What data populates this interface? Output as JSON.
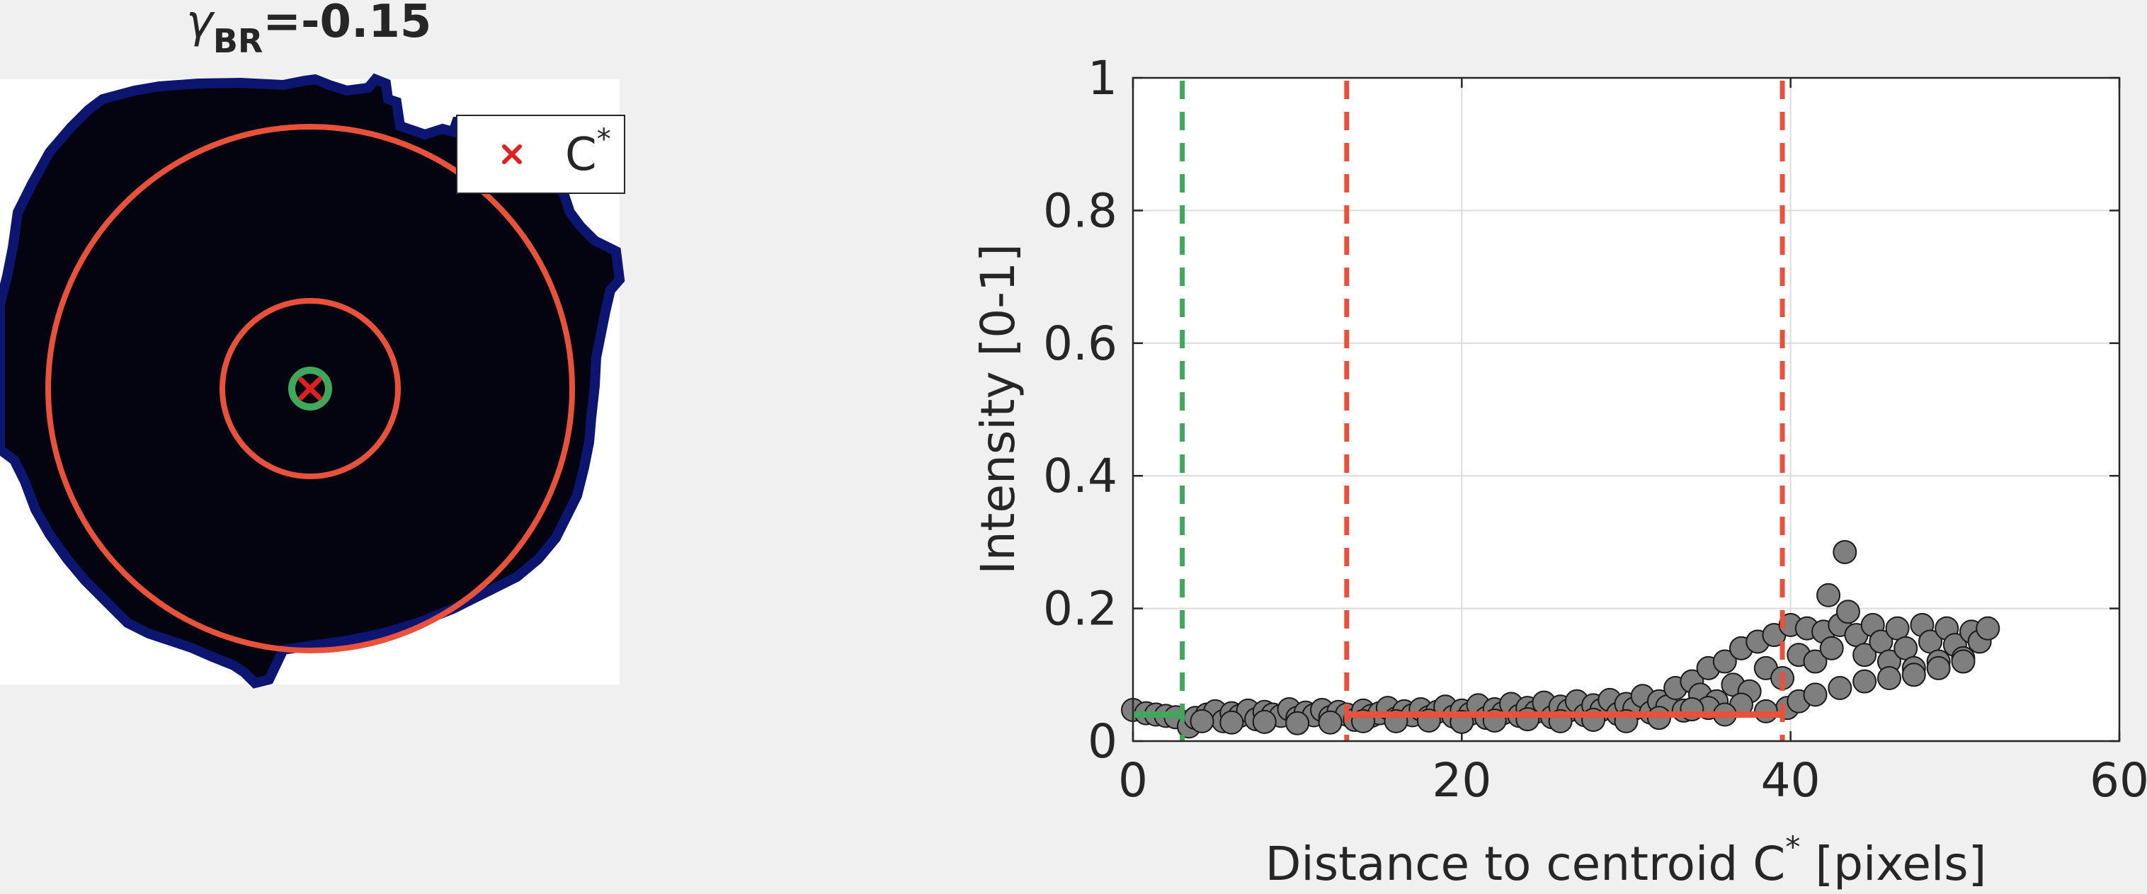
{
  "colors": {
    "figure_background": "#f0f0f0",
    "blob_fill": "#05061a",
    "blob_edge": "#0a1466",
    "inner_ring": "#e8513b",
    "outer_ring": "#e8513b",
    "center_ring": "#3fa85a",
    "marker": "#e02020",
    "scatter_fill": "#7f7f7f",
    "scatter_edge": "#1a1a1a",
    "green_line": "#3fa85a",
    "red_line": "#e8513b"
  },
  "left_panel": {
    "title_symbol": "γ",
    "title_subscript": "BR",
    "title_value": "=-0.15",
    "legend": {
      "marker_symbol": "×",
      "label": "C",
      "label_superscript": "*"
    },
    "image_description_icon": "segmented-cell-image"
  },
  "chart_data": {
    "type": "scatter",
    "title": "",
    "xlabel": "Distance to centroid C",
    "xlabel_superscript": "*",
    "xlabel_suffix": " [pixels]",
    "ylabel": "Intensity [0-1]",
    "xlim": [
      0,
      60
    ],
    "ylim": [
      0,
      1
    ],
    "x_ticks": [
      0,
      20,
      40,
      60
    ],
    "y_ticks": [
      0,
      0.2,
      0.4,
      0.6,
      0.8,
      1
    ],
    "x_tick_labels": [
      "0",
      "20",
      "40",
      "60"
    ],
    "y_tick_labels": [
      "0",
      "0.2",
      "0.4",
      "0.6",
      "0.8",
      "1"
    ],
    "grid": true,
    "vertical_lines": [
      {
        "x": 3.0,
        "color": "green",
        "style": "dashed"
      },
      {
        "x": 13.0,
        "color": "red",
        "style": "dashed"
      },
      {
        "x": 39.5,
        "color": "red",
        "style": "dashed"
      }
    ],
    "mean_segments": [
      {
        "x_start": 0,
        "x_end": 3.0,
        "y": 0.04,
        "color": "green"
      },
      {
        "x_start": 13.0,
        "x_end": 39.5,
        "y": 0.04,
        "color": "red"
      }
    ],
    "scatter_points": [
      [
        0.0,
        0.047
      ],
      [
        0.8,
        0.042
      ],
      [
        1.4,
        0.04
      ],
      [
        2.0,
        0.038
      ],
      [
        2.6,
        0.036
      ],
      [
        3.4,
        0.022
      ],
      [
        3.8,
        0.035
      ],
      [
        4.5,
        0.04
      ],
      [
        5.0,
        0.045
      ],
      [
        5.5,
        0.03
      ],
      [
        6.0,
        0.042
      ],
      [
        6.5,
        0.038
      ],
      [
        7.0,
        0.046
      ],
      [
        7.5,
        0.033
      ],
      [
        8.0,
        0.044
      ],
      [
        8.5,
        0.04
      ],
      [
        9.0,
        0.038
      ],
      [
        9.5,
        0.048
      ],
      [
        10.0,
        0.035
      ],
      [
        10.5,
        0.043
      ],
      [
        11.0,
        0.039
      ],
      [
        11.5,
        0.047
      ],
      [
        12.0,
        0.036
      ],
      [
        12.5,
        0.044
      ],
      [
        13.0,
        0.04
      ],
      [
        13.5,
        0.032
      ],
      [
        14.0,
        0.046
      ],
      [
        14.5,
        0.038
      ],
      [
        15.0,
        0.042
      ],
      [
        15.5,
        0.05
      ],
      [
        16.0,
        0.034
      ],
      [
        16.5,
        0.045
      ],
      [
        17.0,
        0.039
      ],
      [
        17.5,
        0.048
      ],
      [
        18.0,
        0.036
      ],
      [
        18.5,
        0.044
      ],
      [
        19.0,
        0.052
      ],
      [
        19.5,
        0.037
      ],
      [
        20.0,
        0.046
      ],
      [
        20.5,
        0.041
      ],
      [
        21.0,
        0.054
      ],
      [
        21.5,
        0.035
      ],
      [
        22.0,
        0.048
      ],
      [
        22.5,
        0.042
      ],
      [
        23.0,
        0.056
      ],
      [
        23.5,
        0.038
      ],
      [
        24.0,
        0.05
      ],
      [
        24.5,
        0.044
      ],
      [
        25.0,
        0.058
      ],
      [
        25.5,
        0.036
      ],
      [
        26.0,
        0.052
      ],
      [
        26.5,
        0.046
      ],
      [
        27.0,
        0.06
      ],
      [
        27.5,
        0.039
      ],
      [
        28.0,
        0.054
      ],
      [
        28.5,
        0.047
      ],
      [
        29.0,
        0.062
      ],
      [
        29.5,
        0.041
      ],
      [
        30.0,
        0.056
      ],
      [
        30.5,
        0.049
      ],
      [
        31.0,
        0.068
      ],
      [
        31.5,
        0.043
      ],
      [
        32.0,
        0.06
      ],
      [
        32.5,
        0.052
      ],
      [
        33.0,
        0.08
      ],
      [
        33.5,
        0.046
      ],
      [
        34.0,
        0.09
      ],
      [
        34.5,
        0.07
      ],
      [
        35.0,
        0.11
      ],
      [
        35.5,
        0.06
      ],
      [
        36.0,
        0.12
      ],
      [
        36.5,
        0.085
      ],
      [
        37.0,
        0.14
      ],
      [
        37.5,
        0.075
      ],
      [
        38.0,
        0.15
      ],
      [
        38.5,
        0.11
      ],
      [
        39.0,
        0.16
      ],
      [
        39.5,
        0.095
      ],
      [
        40.0,
        0.175
      ],
      [
        40.5,
        0.13
      ],
      [
        41.0,
        0.17
      ],
      [
        41.5,
        0.12
      ],
      [
        42.0,
        0.165
      ],
      [
        42.3,
        0.22
      ],
      [
        42.5,
        0.14
      ],
      [
        43.0,
        0.175
      ],
      [
        43.3,
        0.285
      ],
      [
        43.5,
        0.195
      ],
      [
        44.0,
        0.16
      ],
      [
        44.5,
        0.13
      ],
      [
        45.0,
        0.175
      ],
      [
        45.5,
        0.15
      ],
      [
        46.0,
        0.12
      ],
      [
        46.5,
        0.17
      ],
      [
        47.0,
        0.14
      ],
      [
        47.5,
        0.11
      ],
      [
        48.0,
        0.175
      ],
      [
        48.5,
        0.15
      ],
      [
        49.0,
        0.12
      ],
      [
        49.5,
        0.17
      ],
      [
        50.0,
        0.145
      ],
      [
        50.5,
        0.125
      ],
      [
        51.0,
        0.165
      ],
      [
        51.5,
        0.15
      ],
      [
        52.0,
        0.17
      ],
      [
        39.8,
        0.05
      ],
      [
        40.5,
        0.06
      ],
      [
        41.5,
        0.07
      ],
      [
        43.0,
        0.08
      ],
      [
        44.5,
        0.09
      ],
      [
        46.0,
        0.095
      ],
      [
        47.5,
        0.1
      ],
      [
        49.0,
        0.11
      ],
      [
        50.5,
        0.12
      ],
      [
        35.0,
        0.05
      ],
      [
        37.0,
        0.055
      ],
      [
        38.5,
        0.045
      ],
      [
        36.0,
        0.04
      ],
      [
        34.0,
        0.048
      ],
      [
        32.0,
        0.035
      ],
      [
        30.0,
        0.03
      ],
      [
        28.0,
        0.032
      ],
      [
        26.0,
        0.03
      ],
      [
        24.0,
        0.033
      ],
      [
        22.0,
        0.031
      ],
      [
        20.0,
        0.029
      ],
      [
        18.0,
        0.031
      ],
      [
        16.0,
        0.03
      ],
      [
        14.0,
        0.03
      ],
      [
        12.0,
        0.028
      ],
      [
        10.0,
        0.027
      ],
      [
        8.0,
        0.029
      ],
      [
        6.0,
        0.028
      ],
      [
        4.2,
        0.03
      ]
    ]
  }
}
